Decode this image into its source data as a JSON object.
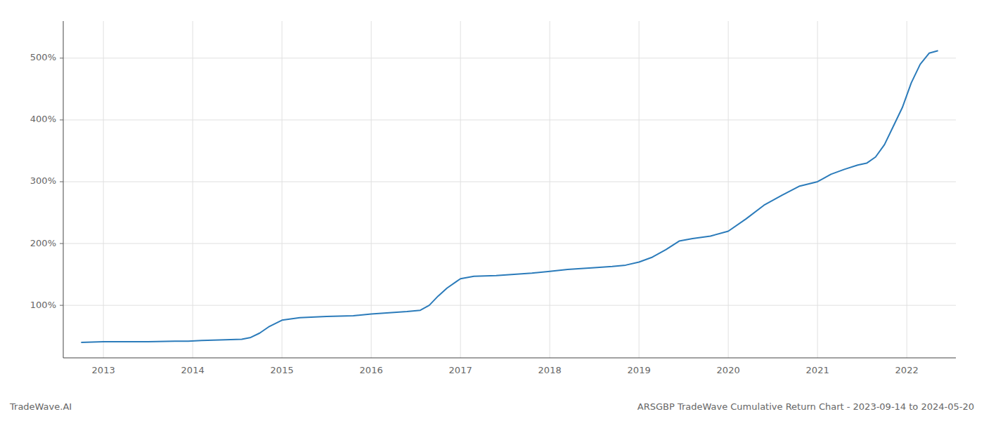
{
  "chart_data": {
    "type": "line",
    "title": "ARSGBP TradeWave Cumulative Return Chart - 2023-09-14 to 2024-05-20",
    "annotations": [
      "TradeWave.AI"
    ],
    "color": "#2b7bba",
    "grid": true,
    "x": [
      2012.75,
      2013.0,
      2013.2,
      2013.5,
      2013.8,
      2013.95,
      2014.1,
      2014.3,
      2014.55,
      2014.65,
      2014.75,
      2014.85,
      2015.0,
      2015.2,
      2015.5,
      2015.8,
      2016.0,
      2016.2,
      2016.4,
      2016.55,
      2016.65,
      2016.75,
      2016.85,
      2016.95,
      2017.0,
      2017.15,
      2017.4,
      2017.6,
      2017.8,
      2018.0,
      2018.2,
      2018.5,
      2018.7,
      2018.85,
      2019.0,
      2019.15,
      2019.3,
      2019.45,
      2019.6,
      2019.8,
      2020.0,
      2020.2,
      2020.4,
      2020.6,
      2020.8,
      2021.0,
      2021.15,
      2021.3,
      2021.45,
      2021.55,
      2021.65,
      2021.75,
      2021.85,
      2021.95,
      2022.05,
      2022.15,
      2022.25,
      2022.35
    ],
    "values": [
      40,
      41,
      41,
      41,
      42,
      42,
      43,
      44,
      45,
      48,
      55,
      65,
      76,
      80,
      82,
      83,
      86,
      88,
      90,
      92,
      100,
      115,
      128,
      138,
      143,
      147,
      148,
      150,
      152,
      155,
      158,
      161,
      163,
      165,
      170,
      178,
      190,
      204,
      208,
      212,
      220,
      240,
      262,
      278,
      293,
      300,
      312,
      320,
      327,
      330,
      340,
      360,
      390,
      420,
      460,
      490,
      508,
      512
    ],
    "xlim": [
      2012.55,
      2022.55
    ],
    "xticks": [
      2013,
      2014,
      2015,
      2016,
      2017,
      2018,
      2019,
      2020,
      2021,
      2022
    ],
    "ylim": [
      15,
      560
    ],
    "yticks": [
      {
        "value": 100,
        "label": "100%"
      },
      {
        "value": 200,
        "label": "200%"
      },
      {
        "value": 300,
        "label": "300%"
      },
      {
        "value": 400,
        "label": "400%"
      },
      {
        "value": 500,
        "label": "500%"
      }
    ]
  }
}
